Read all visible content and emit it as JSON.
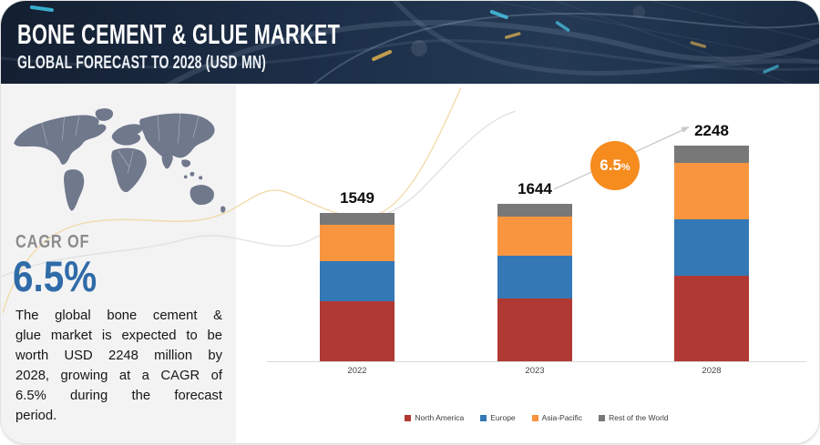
{
  "header": {
    "title": "BONE CEMENT & GLUE MARKET",
    "subtitle": "GLOBAL FORECAST TO 2028 (USD MN)"
  },
  "cagr": {
    "label": "CAGR OF",
    "value": "6.5%",
    "description_lines": [
      "The global bone cement &",
      "glue market is expected to be",
      "worth USD 2248 million by",
      "2028, growing at a CAGR of",
      "6.5% during the forecast",
      "period."
    ]
  },
  "growth_badge": {
    "value": "6.5",
    "percent_sign": "%"
  },
  "chart_data": {
    "type": "bar",
    "stacked": true,
    "unit": "USD MN",
    "categories": [
      "2022",
      "2023",
      "2028"
    ],
    "series": [
      {
        "name": "North America",
        "color": "#b03a33",
        "values": [
          629,
          652,
          894
        ]
      },
      {
        "name": "Europe",
        "color": "#3478b6",
        "values": [
          413,
          449,
          585
        ]
      },
      {
        "name": "Asia-Pacific",
        "color": "#f9953f",
        "values": [
          376,
          410,
          589
        ]
      },
      {
        "name": "Rest of the World",
        "color": "#787878",
        "values": [
          131,
          133,
          180
        ]
      }
    ],
    "totals": [
      1549,
      1644,
      2248
    ],
    "legend_position": "bottom",
    "growth_annotation": "6.5%"
  },
  "colors": {
    "badge_orange": "#f68b1e",
    "cagr_blue": "#2f6ba8",
    "header_navy": "#1c2e47",
    "arrow_gray": "#c9c9c9"
  }
}
